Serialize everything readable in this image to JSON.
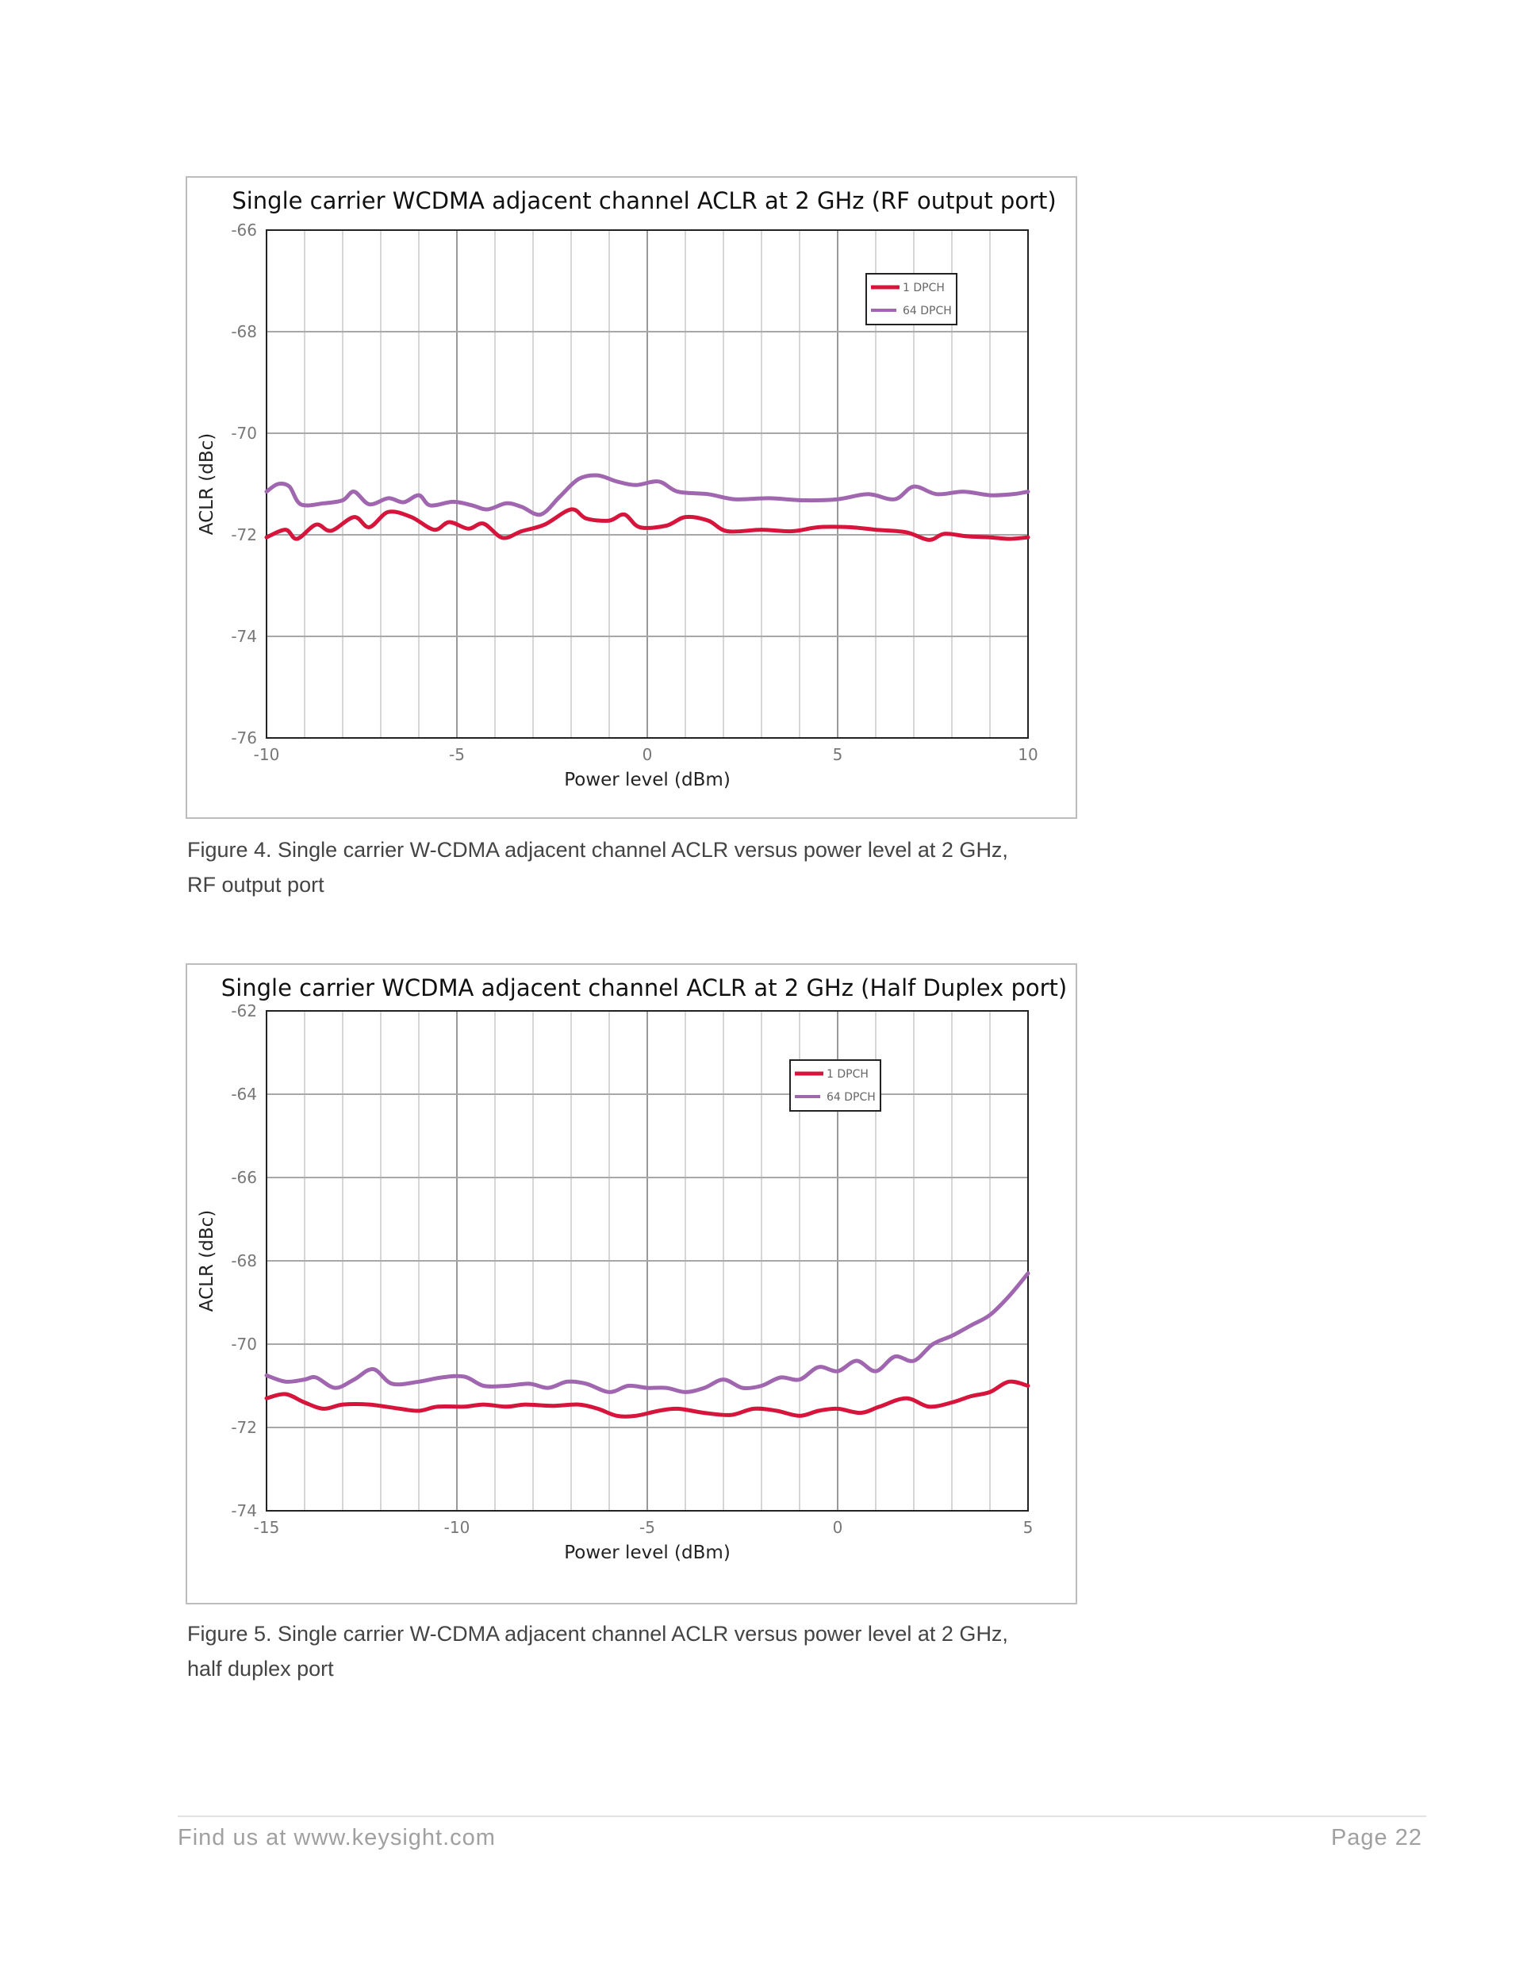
{
  "charts": [
    {
      "caption_lines": [
        "Figure 4. Single carrier W-CDMA adjacent channel ACLR versus power level at 2 GHz,",
        "RF output port"
      ]
    },
    {
      "caption_lines": [
        "Figure 5. Single carrier W-CDMA adjacent channel ACLR versus power level at 2 GHz,",
        "half duplex port"
      ]
    }
  ],
  "chart_data": [
    {
      "type": "line",
      "title": "Single carrier WCDMA adjacent channel ACLR at 2 GHz (RF output port)",
      "xlabel": "Power level (dBm)",
      "ylabel": "ACLR (dBc)",
      "xlim": [
        -10,
        10
      ],
      "ylim": [
        -76,
        -66
      ],
      "xticks": [
        -10,
        -5,
        0,
        5,
        10
      ],
      "yticks": [
        -66,
        -68,
        -70,
        -72,
        -74,
        -76
      ],
      "grid": true,
      "legend_position": "top-right",
      "series": [
        {
          "name": "1 DPCH",
          "color": "#d6143c",
          "points": [
            [
              -10,
              -72.05
            ],
            [
              -9.5,
              -71.9
            ],
            [
              -9.2,
              -72.08
            ],
            [
              -8.7,
              -71.8
            ],
            [
              -8.3,
              -71.92
            ],
            [
              -7.7,
              -71.65
            ],
            [
              -7.3,
              -71.85
            ],
            [
              -6.8,
              -71.55
            ],
            [
              -6.2,
              -71.65
            ],
            [
              -5.6,
              -71.9
            ],
            [
              -5.2,
              -71.75
            ],
            [
              -4.7,
              -71.88
            ],
            [
              -4.3,
              -71.78
            ],
            [
              -3.8,
              -72.06
            ],
            [
              -3.3,
              -71.93
            ],
            [
              -2.7,
              -71.8
            ],
            [
              -2,
              -71.5
            ],
            [
              -1.6,
              -71.68
            ],
            [
              -1,
              -71.72
            ],
            [
              -0.6,
              -71.6
            ],
            [
              -0.2,
              -71.85
            ],
            [
              0.5,
              -71.82
            ],
            [
              1,
              -71.65
            ],
            [
              1.6,
              -71.72
            ],
            [
              2.1,
              -71.93
            ],
            [
              3,
              -71.9
            ],
            [
              3.8,
              -71.93
            ],
            [
              4.5,
              -71.85
            ],
            [
              5.3,
              -71.85
            ],
            [
              6,
              -71.9
            ],
            [
              6.8,
              -71.95
            ],
            [
              7.4,
              -72.1
            ],
            [
              7.8,
              -71.98
            ],
            [
              8.4,
              -72.03
            ],
            [
              9,
              -72.05
            ],
            [
              9.5,
              -72.08
            ],
            [
              10,
              -72.05
            ]
          ]
        },
        {
          "name": "64 DPCH",
          "color": "#a066b0",
          "points": [
            [
              -10,
              -71.15
            ],
            [
              -9.7,
              -71.0
            ],
            [
              -9.4,
              -71.05
            ],
            [
              -9.1,
              -71.4
            ],
            [
              -8.5,
              -71.38
            ],
            [
              -8.0,
              -71.32
            ],
            [
              -7.7,
              -71.15
            ],
            [
              -7.3,
              -71.4
            ],
            [
              -6.8,
              -71.28
            ],
            [
              -6.4,
              -71.36
            ],
            [
              -6.0,
              -71.22
            ],
            [
              -5.7,
              -71.42
            ],
            [
              -5.1,
              -71.35
            ],
            [
              -4.6,
              -71.42
            ],
            [
              -4.2,
              -71.5
            ],
            [
              -3.7,
              -71.38
            ],
            [
              -3.3,
              -71.45
            ],
            [
              -2.8,
              -71.6
            ],
            [
              -2.3,
              -71.25
            ],
            [
              -1.8,
              -70.9
            ],
            [
              -1.3,
              -70.83
            ],
            [
              -0.8,
              -70.95
            ],
            [
              -0.3,
              -71.02
            ],
            [
              0.3,
              -70.95
            ],
            [
              0.8,
              -71.15
            ],
            [
              1.6,
              -71.2
            ],
            [
              2.3,
              -71.3
            ],
            [
              3.2,
              -71.28
            ],
            [
              4.1,
              -71.32
            ],
            [
              5.0,
              -71.3
            ],
            [
              5.8,
              -71.2
            ],
            [
              6.5,
              -71.3
            ],
            [
              7.0,
              -71.05
            ],
            [
              7.6,
              -71.2
            ],
            [
              8.3,
              -71.15
            ],
            [
              9,
              -71.22
            ],
            [
              9.6,
              -71.2
            ],
            [
              10,
              -71.15
            ]
          ]
        }
      ]
    },
    {
      "type": "line",
      "title": "Single carrier WCDMA adjacent channel ACLR at 2 GHz (Half Duplex port)",
      "xlabel": "Power level (dBm)",
      "ylabel": "ACLR (dBc)",
      "xlim": [
        -15,
        5
      ],
      "ylim": [
        -74,
        -62
      ],
      "xticks": [
        -15,
        -10,
        -5,
        0,
        5
      ],
      "yticks": [
        -62,
        -64,
        -66,
        -68,
        -70,
        -72,
        -74
      ],
      "grid": true,
      "legend_position": "top-right",
      "series": [
        {
          "name": "1 DPCH",
          "color": "#d6143c",
          "points": [
            [
              -15,
              -71.3
            ],
            [
              -14.5,
              -71.2
            ],
            [
              -14,
              -71.4
            ],
            [
              -13.5,
              -71.55
            ],
            [
              -13,
              -71.45
            ],
            [
              -12.3,
              -71.45
            ],
            [
              -11.5,
              -71.55
            ],
            [
              -11,
              -71.6
            ],
            [
              -10.5,
              -71.5
            ],
            [
              -9.8,
              -71.5
            ],
            [
              -9.3,
              -71.45
            ],
            [
              -8.7,
              -71.5
            ],
            [
              -8.2,
              -71.45
            ],
            [
              -7.5,
              -71.48
            ],
            [
              -6.8,
              -71.45
            ],
            [
              -6.3,
              -71.55
            ],
            [
              -5.8,
              -71.72
            ],
            [
              -5.3,
              -71.72
            ],
            [
              -4.7,
              -71.6
            ],
            [
              -4.2,
              -71.55
            ],
            [
              -3.5,
              -71.65
            ],
            [
              -2.8,
              -71.7
            ],
            [
              -2.2,
              -71.55
            ],
            [
              -1.6,
              -71.6
            ],
            [
              -1,
              -71.72
            ],
            [
              -0.5,
              -71.6
            ],
            [
              0,
              -71.55
            ],
            [
              0.6,
              -71.65
            ],
            [
              1.1,
              -71.5
            ],
            [
              1.8,
              -71.3
            ],
            [
              2.4,
              -71.5
            ],
            [
              3.0,
              -71.4
            ],
            [
              3.5,
              -71.25
            ],
            [
              4.0,
              -71.15
            ],
            [
              4.5,
              -70.9
            ],
            [
              5,
              -71.0
            ]
          ]
        },
        {
          "name": "64 DPCH",
          "color": "#a066b0",
          "points": [
            [
              -15,
              -70.75
            ],
            [
              -14.5,
              -70.9
            ],
            [
              -14,
              -70.85
            ],
            [
              -13.7,
              -70.8
            ],
            [
              -13.2,
              -71.05
            ],
            [
              -12.7,
              -70.85
            ],
            [
              -12.2,
              -70.6
            ],
            [
              -11.7,
              -70.95
            ],
            [
              -11,
              -70.9
            ],
            [
              -10.4,
              -70.8
            ],
            [
              -9.8,
              -70.78
            ],
            [
              -9.3,
              -71.0
            ],
            [
              -8.7,
              -71.0
            ],
            [
              -8.1,
              -70.95
            ],
            [
              -7.6,
              -71.05
            ],
            [
              -7.1,
              -70.9
            ],
            [
              -6.6,
              -70.95
            ],
            [
              -6.0,
              -71.15
            ],
            [
              -5.5,
              -71.0
            ],
            [
              -5.0,
              -71.05
            ],
            [
              -4.5,
              -71.05
            ],
            [
              -4.0,
              -71.15
            ],
            [
              -3.5,
              -71.05
            ],
            [
              -3.0,
              -70.85
            ],
            [
              -2.5,
              -71.05
            ],
            [
              -2.0,
              -71.0
            ],
            [
              -1.5,
              -70.8
            ],
            [
              -1.0,
              -70.85
            ],
            [
              -0.5,
              -70.55
            ],
            [
              0,
              -70.65
            ],
            [
              0.5,
              -70.4
            ],
            [
              1.0,
              -70.65
            ],
            [
              1.5,
              -70.3
            ],
            [
              2.0,
              -70.4
            ],
            [
              2.5,
              -70.0
            ],
            [
              3.0,
              -69.8
            ],
            [
              3.5,
              -69.55
            ],
            [
              4.0,
              -69.3
            ],
            [
              4.5,
              -68.85
            ],
            [
              5,
              -68.3
            ]
          ]
        }
      ]
    }
  ],
  "footer": {
    "left": "Find us at www.keysight.com",
    "right": "Page 22"
  }
}
